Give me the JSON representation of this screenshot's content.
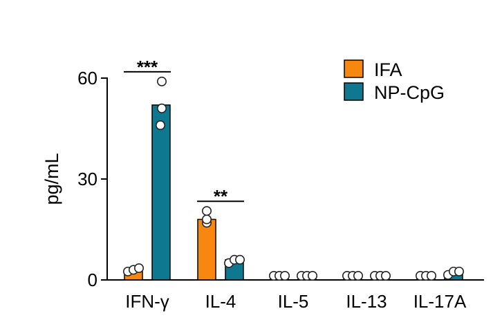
{
  "chart_data": {
    "type": "bar",
    "ylabel": "pg/mL",
    "ylim": [
      0,
      60
    ],
    "yticks": [
      0,
      30,
      60
    ],
    "categories": [
      "IFN-γ",
      "IL-4",
      "IL-5",
      "IL-13",
      "IL-17A"
    ],
    "series": [
      {
        "name": "IFA",
        "color": "#f7870f",
        "values": [
          3,
          18,
          0.5,
          0.2,
          0.5
        ],
        "points": [
          [
            2.5,
            3,
            3.5
          ],
          [
            17,
            18,
            20.5
          ],
          [
            1,
            1,
            1
          ],
          [
            0.5,
            0.5,
            0.5
          ],
          [
            1,
            1,
            1
          ]
        ]
      },
      {
        "name": "NP-CpG",
        "color": "#0d7890",
        "values": [
          52,
          6,
          0.5,
          0.2,
          2
        ],
        "points": [
          [
            46,
            51,
            59
          ],
          [
            5,
            6,
            6
          ],
          [
            1,
            1,
            1
          ],
          [
            0.5,
            0.5,
            0.5
          ],
          [
            1.5,
            2.5,
            2.5
          ]
        ]
      }
    ],
    "significance": [
      {
        "category_index": 0,
        "label": "***"
      },
      {
        "category_index": 1,
        "label": "**"
      }
    ],
    "legend_position": "top-right"
  }
}
